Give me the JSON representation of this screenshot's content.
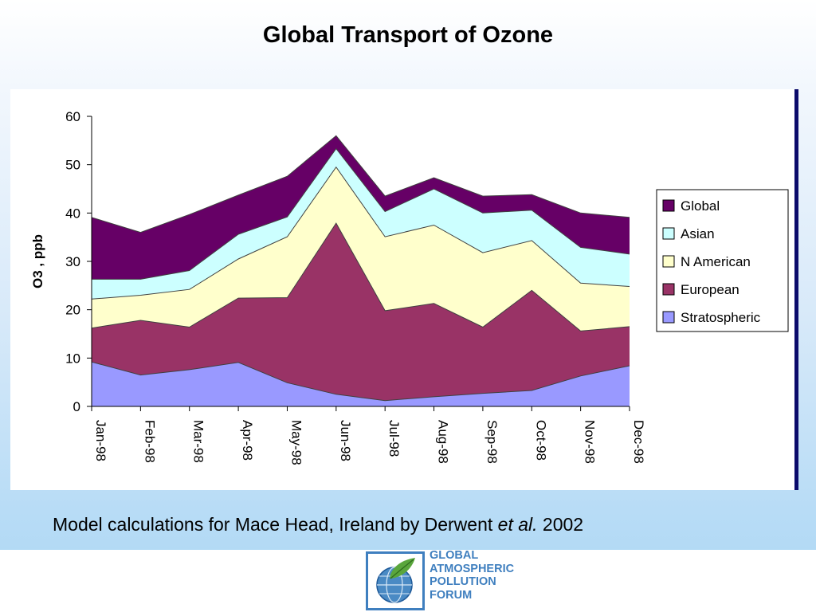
{
  "slide": {
    "title": "Global Transport of Ozone",
    "caption_pre": "Model calculations for Mace Head, Ireland by Derwent ",
    "caption_em": "et al.",
    "caption_post": " 2002"
  },
  "logo": {
    "lines": [
      "GLOBAL",
      "ATMOSPHERIC",
      "POLLUTION",
      "FORUM"
    ],
    "icon": "globe-leaf-icon"
  },
  "chart_data": {
    "type": "area",
    "stacked": true,
    "ylabel": "O3 , ppb",
    "xlabel": "",
    "ylim": [
      0,
      60
    ],
    "yticks": [
      0,
      10,
      20,
      30,
      40,
      50,
      60
    ],
    "categories": [
      "Jan-98",
      "Feb-98",
      "Mar-98",
      "Apr-98",
      "May-98",
      "Jun-98",
      "Jul-98",
      "Aug-98",
      "Sep-98",
      "Oct-98",
      "Nov-98",
      "Dec-98"
    ],
    "legend_position": "right",
    "grid": false,
    "series": [
      {
        "name": "Stratospheric",
        "color": "#9999ff",
        "values": [
          9.2,
          6.5,
          7.6,
          9.1,
          4.9,
          2.5,
          1.2,
          2.0,
          2.7,
          3.3,
          6.3,
          8.4
        ]
      },
      {
        "name": "European",
        "color": "#993366",
        "values": [
          7.0,
          11.3,
          8.8,
          13.3,
          17.6,
          35.4,
          18.6,
          19.3,
          13.7,
          20.7,
          9.3,
          8.1
        ]
      },
      {
        "name": "N American",
        "color": "#ffffcc",
        "values": [
          6.0,
          5.2,
          7.8,
          8.1,
          12.6,
          11.6,
          15.3,
          16.2,
          15.4,
          10.3,
          9.9,
          8.3
        ]
      },
      {
        "name": "Asian",
        "color": "#ccffff",
        "values": [
          4.1,
          3.3,
          3.9,
          5.1,
          4.1,
          3.8,
          5.2,
          7.5,
          8.2,
          6.3,
          7.4,
          6.7
        ]
      },
      {
        "name": "Global",
        "color": "#660066",
        "values": [
          12.8,
          9.7,
          11.6,
          8.1,
          8.4,
          2.7,
          3.2,
          2.3,
          3.5,
          3.2,
          7.1,
          7.6
        ]
      }
    ]
  }
}
